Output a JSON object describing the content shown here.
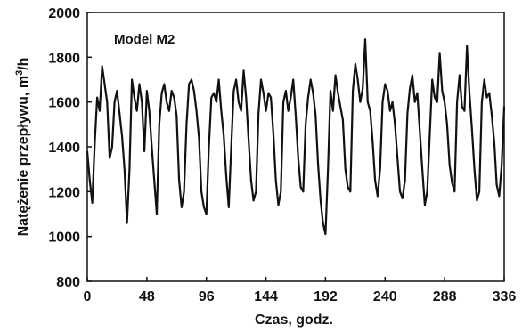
{
  "chart_data": {
    "type": "line",
    "annotation": "Model M2",
    "xlabel": "Czas, godz.",
    "ylabel_main": "Natężenie przepływu, m",
    "ylabel_sup": "3",
    "ylabel_tail": "/h",
    "xlim": [
      0,
      336
    ],
    "ylim": [
      800,
      2000
    ],
    "xticks": [
      0,
      48,
      96,
      144,
      192,
      240,
      288,
      336
    ],
    "yticks": [
      800,
      1000,
      1200,
      1400,
      1600,
      1800,
      2000
    ],
    "grid": false,
    "series": [
      {
        "x": [
          0,
          2,
          4,
          6,
          8,
          10,
          12,
          14,
          16,
          18,
          20,
          22,
          24,
          26,
          28,
          30,
          32,
          34,
          36,
          38,
          40,
          42,
          44,
          46,
          48,
          50,
          52,
          54,
          56,
          58,
          60,
          62,
          64,
          66,
          68,
          70,
          72,
          74,
          76,
          78,
          80,
          82,
          84,
          86,
          88,
          90,
          92,
          94,
          96,
          98,
          100,
          102,
          104,
          106,
          108,
          110,
          112,
          114,
          116,
          118,
          120,
          122,
          124,
          126,
          128,
          130,
          132,
          134,
          136,
          138,
          140,
          142,
          144,
          146,
          148,
          150,
          152,
          154,
          156,
          158,
          160,
          162,
          164,
          166,
          168,
          170,
          172,
          174,
          176,
          178,
          180,
          182,
          184,
          186,
          188,
          190,
          192,
          194,
          196,
          198,
          200,
          202,
          204,
          206,
          208,
          210,
          212,
          214,
          216,
          218,
          220,
          222,
          224,
          226,
          228,
          230,
          232,
          234,
          236,
          238,
          240,
          242,
          244,
          246,
          248,
          250,
          252,
          254,
          256,
          258,
          260,
          262,
          264,
          266,
          268,
          270,
          272,
          274,
          276,
          278,
          280,
          282,
          284,
          286,
          288,
          290,
          292,
          294,
          296,
          298,
          300,
          302,
          304,
          306,
          308,
          310,
          312,
          314,
          316,
          318,
          320,
          322,
          324,
          326,
          328,
          330,
          332,
          334,
          336
        ],
        "y": [
          1380,
          1250,
          1150,
          1420,
          1620,
          1560,
          1760,
          1680,
          1600,
          1350,
          1400,
          1600,
          1650,
          1550,
          1450,
          1300,
          1060,
          1300,
          1700,
          1620,
          1560,
          1680,
          1600,
          1380,
          1650,
          1560,
          1400,
          1250,
          1100,
          1500,
          1640,
          1680,
          1600,
          1560,
          1650,
          1620,
          1540,
          1250,
          1130,
          1200,
          1500,
          1680,
          1700,
          1650,
          1560,
          1440,
          1200,
          1130,
          1100,
          1400,
          1620,
          1640,
          1600,
          1700,
          1560,
          1450,
          1270,
          1130,
          1400,
          1650,
          1700,
          1600,
          1560,
          1740,
          1620,
          1430,
          1250,
          1160,
          1200,
          1550,
          1700,
          1640,
          1560,
          1640,
          1620,
          1460,
          1250,
          1140,
          1200,
          1600,
          1650,
          1560,
          1620,
          1700,
          1540,
          1350,
          1220,
          1200,
          1500,
          1620,
          1700,
          1640,
          1540,
          1320,
          1160,
          1060,
          1010,
          1300,
          1650,
          1560,
          1720,
          1640,
          1580,
          1520,
          1300,
          1220,
          1200,
          1650,
          1770,
          1700,
          1600,
          1660,
          1880,
          1600,
          1560,
          1420,
          1250,
          1180,
          1300,
          1600,
          1680,
          1650,
          1560,
          1600,
          1500,
          1350,
          1200,
          1170,
          1250,
          1550,
          1660,
          1720,
          1600,
          1640,
          1470,
          1300,
          1140,
          1200,
          1450,
          1700,
          1620,
          1600,
          1820,
          1650,
          1600,
          1500,
          1320,
          1240,
          1200,
          1600,
          1720,
          1580,
          1560,
          1850,
          1640,
          1480,
          1300,
          1160,
          1200,
          1600,
          1700,
          1620,
          1640,
          1540,
          1420,
          1230,
          1180,
          1320,
          1580
        ]
      }
    ]
  }
}
